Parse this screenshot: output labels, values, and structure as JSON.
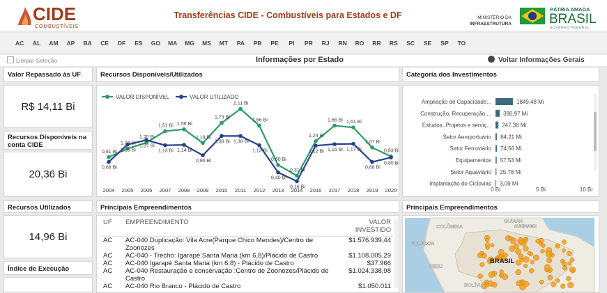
{
  "header": {
    "logo": "CIDE",
    "logo_sub": "COMBUSTÍVEIS",
    "title": "Transferências CIDE - Combustíveis para Estados e DF",
    "ministry": [
      "MINISTÉRIO DA",
      "INFRAESTRUTURA"
    ],
    "gov": [
      "PÁTRIA AMADA",
      "BRASIL",
      "GOVERNO FEDERAL"
    ]
  },
  "states": [
    "AC",
    "AL",
    "AM",
    "AP",
    "BA",
    "CE",
    "DF",
    "ES",
    "GO",
    "MA",
    "MG",
    "MS",
    "MT",
    "PA",
    "PB",
    "PE",
    "PI",
    "PR",
    "RJ",
    "RN",
    "RO",
    "RR",
    "RS",
    "SC",
    "SE",
    "SP",
    "TO"
  ],
  "toolbar": {
    "clear": "Limpar Seleção",
    "title": "Informações por Estado",
    "back": "Voltar Informações Gerais"
  },
  "kpis": [
    {
      "label": "Valor Repassado às UF",
      "value": "R$ 14,11 Bi"
    },
    {
      "label": "Recursos Disponíveis na conta CIDE",
      "value": "20,36 Bi"
    },
    {
      "label": "Recursos Utilizados",
      "value": "14,96 Bi"
    },
    {
      "label": "Índice de Execução"
    }
  ],
  "line_chart": {
    "type": "line",
    "title": "Recursos Disponíveis/Utilizados",
    "categories": [
      "2004",
      "2005",
      "2006",
      "2007",
      "2008",
      "2009",
      "2010",
      "2011",
      "2012",
      "2013",
      "2014",
      "2016",
      "2017",
      "2018",
      "2019",
      "2020"
    ],
    "series": [
      {
        "name": "VALOR DISPONÍVEL",
        "color": "#2e9a6c",
        "values": [
          0.81,
          1.04,
          1.2,
          1.51,
          1.56,
          1.19,
          1.73,
          2.11,
          1.66,
          0.6,
          0.31,
          1.24,
          1.66,
          1.61,
          1.07,
          0.83
        ],
        "value_labels": [
          "0,81 Bi",
          "1,04 Bi",
          "1,20 Bi",
          "1,51 Bi",
          "1,56 Bi",
          "1,19 Bi",
          "1,73 Bi",
          "2,11 Bi",
          "1,66 Bi",
          "0,60 Bi",
          "0,31 Bi",
          "1,24 Bi",
          "1,66 Bi",
          "1,61 Bi",
          "1,07 Bi",
          "0,83 Bi"
        ]
      },
      {
        "name": "VALOR UTILIZADO",
        "color": "#27418c",
        "values": [
          0.68,
          1.15,
          1.27,
          1.13,
          1.14,
          0.86,
          1.38,
          1.38,
          1.13,
          0.4,
          0.16,
          1.12,
          1.16,
          1.17,
          0.68,
          0.8
        ],
        "value_labels": [
          "0,68 Bi",
          "1,15 Bi",
          "1,27 Bi",
          "1,13 Bi",
          "1,14 Bi",
          "0,86 Bi",
          "1,38 Bi",
          "1,38 Bi",
          "1,13 Bi",
          "0,40 Bi",
          "0,16 Bi",
          "1,12 Bi",
          "1,16 Bi",
          "1,17 Bi",
          "0,68 Bi",
          "0,80 Bi"
        ]
      }
    ],
    "ylim": [
      0,
      2.4
    ],
    "legend": "top-left"
  },
  "bar_chart": {
    "type": "bar",
    "orientation": "horizontal",
    "title": "Categoria dos Investimentos",
    "categories": [
      "Ampliação de Capacidade...",
      "Construção, Recuperação,...",
      "Estudos, Projetos e serviç...",
      "Setor Aeroportuário",
      "Setor Ferroviário",
      "Equipamentos",
      "Setor Aquaviário",
      "Implantação de Ciclovias"
    ],
    "values": [
      1.84948,
      0.39097,
      0.24738,
      0.08421,
      0.07456,
      0.05753,
      0.02578,
      0.00309
    ],
    "value_labels": [
      "1849,48 Mi",
      "390,97 Mi",
      "247,38 Mi",
      "84,21 Mi",
      "74,56 Mi",
      "57,53 Mi",
      "25,78 Mi",
      "3,09 Mi"
    ],
    "color": "#3b6b7c",
    "xlim": [
      0,
      10
    ],
    "xticks": [
      {
        "value": 0,
        "label": "0 Bi"
      },
      {
        "value": 5,
        "label": "5 Bi"
      },
      {
        "value": 10,
        "label": "10 Bi"
      }
    ]
  },
  "projects_table": {
    "title": "Principais Empreendimentos",
    "columns": [
      "UF",
      "EMPREENDIMENTO",
      "VALOR INVESTIDO"
    ],
    "rows": [
      [
        "AC",
        "AC-040 Duplicação: Vila Acre(Parque Chico Mendes)/Centro de Zoonozes",
        "$1.576.939,44"
      ],
      [
        "AC",
        "AC-040 - Trecho: Igarapé Santa Maria (km 6,8)/Plácido de Castro",
        "$1.108.005,29"
      ],
      [
        "AC",
        "AC-040 Igarapé Santa Maria (km 6,8) - Plácido de Castro",
        "$37.966"
      ],
      [
        "AC",
        "AC-040 Restauração e conservação :Centro de Zoonozes/Plácido de Castro",
        "$1.024.338,98"
      ],
      [
        "AC",
        "AC-040 Rio Branco - Plácido de Castro",
        "$1.050.011"
      ]
    ]
  },
  "map": {
    "title": "Principais Empreendimentos",
    "labels": [
      "GUIANA",
      "SURINAME",
      "COLÔMBIA",
      "EQUADOR",
      "PERU",
      "BRASIL",
      "BOLÍVIA"
    ]
  }
}
